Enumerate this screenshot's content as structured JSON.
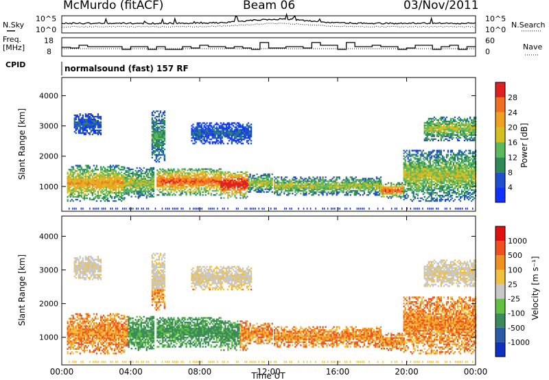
{
  "header": {
    "station": "McMurdo (fitACF)",
    "beam": "Beam 06",
    "date": "03/Nov/2011"
  },
  "panel_labels": {
    "nsky": "N.Sky",
    "nsearch": "N.Search",
    "freq_line1": "Freq.",
    "freq_line2": "[MHz]",
    "nave": "Nave",
    "cpid": "CPID",
    "cpid_value": "normalsound (fast) 157 RF"
  },
  "axis_labels": {
    "noise_ticks": [
      "10^5",
      "10^0"
    ],
    "freq_ticks": [
      "18",
      "8"
    ],
    "nave_ticks": [
      "60",
      "0"
    ]
  },
  "chart_data": [
    {
      "type": "heatmap",
      "name": "power",
      "xlabel": "Time UT",
      "ylabel": "Slant Range [km]",
      "xticks": [
        "00:00",
        "04:00",
        "08:00",
        "12:00",
        "16:00",
        "20:00",
        "00:00"
      ],
      "yticks": [
        "1000",
        "2000",
        "3000",
        "4000"
      ],
      "xlim": [
        0,
        24
      ],
      "ylim": [
        180,
        4600
      ],
      "colorbar": {
        "label": "Power [dB]",
        "ticks": [
          "4",
          "8",
          "12",
          "16",
          "20",
          "24",
          "28"
        ],
        "colors": [
          "#1030ff",
          "#2050d0",
          "#2e8b57",
          "#5cb85c",
          "#d4c020",
          "#f0a020",
          "#f07020",
          "#e02020"
        ]
      }
    },
    {
      "type": "heatmap",
      "name": "velocity",
      "xlabel": "Time UT",
      "ylabel": "Slant Range [km]",
      "xticks": [
        "00:00",
        "04:00",
        "08:00",
        "12:00",
        "16:00",
        "20:00",
        "00:00"
      ],
      "yticks": [
        "1000",
        "2000",
        "3000",
        "4000"
      ],
      "xlim": [
        0,
        24
      ],
      "ylim": [
        180,
        4600
      ],
      "colorbar": {
        "label": "Velocity [m s⁻¹]",
        "ticks": [
          "1000",
          "500",
          "100",
          "25",
          "-25",
          "-100",
          "-500",
          "-1000"
        ],
        "colors": [
          "#1030c0",
          "#2a5aa8",
          "#3a8a5a",
          "#60c040",
          "#c8c8c8",
          "#f0c040",
          "#f09020",
          "#f05020",
          "#e01010"
        ]
      }
    }
  ]
}
